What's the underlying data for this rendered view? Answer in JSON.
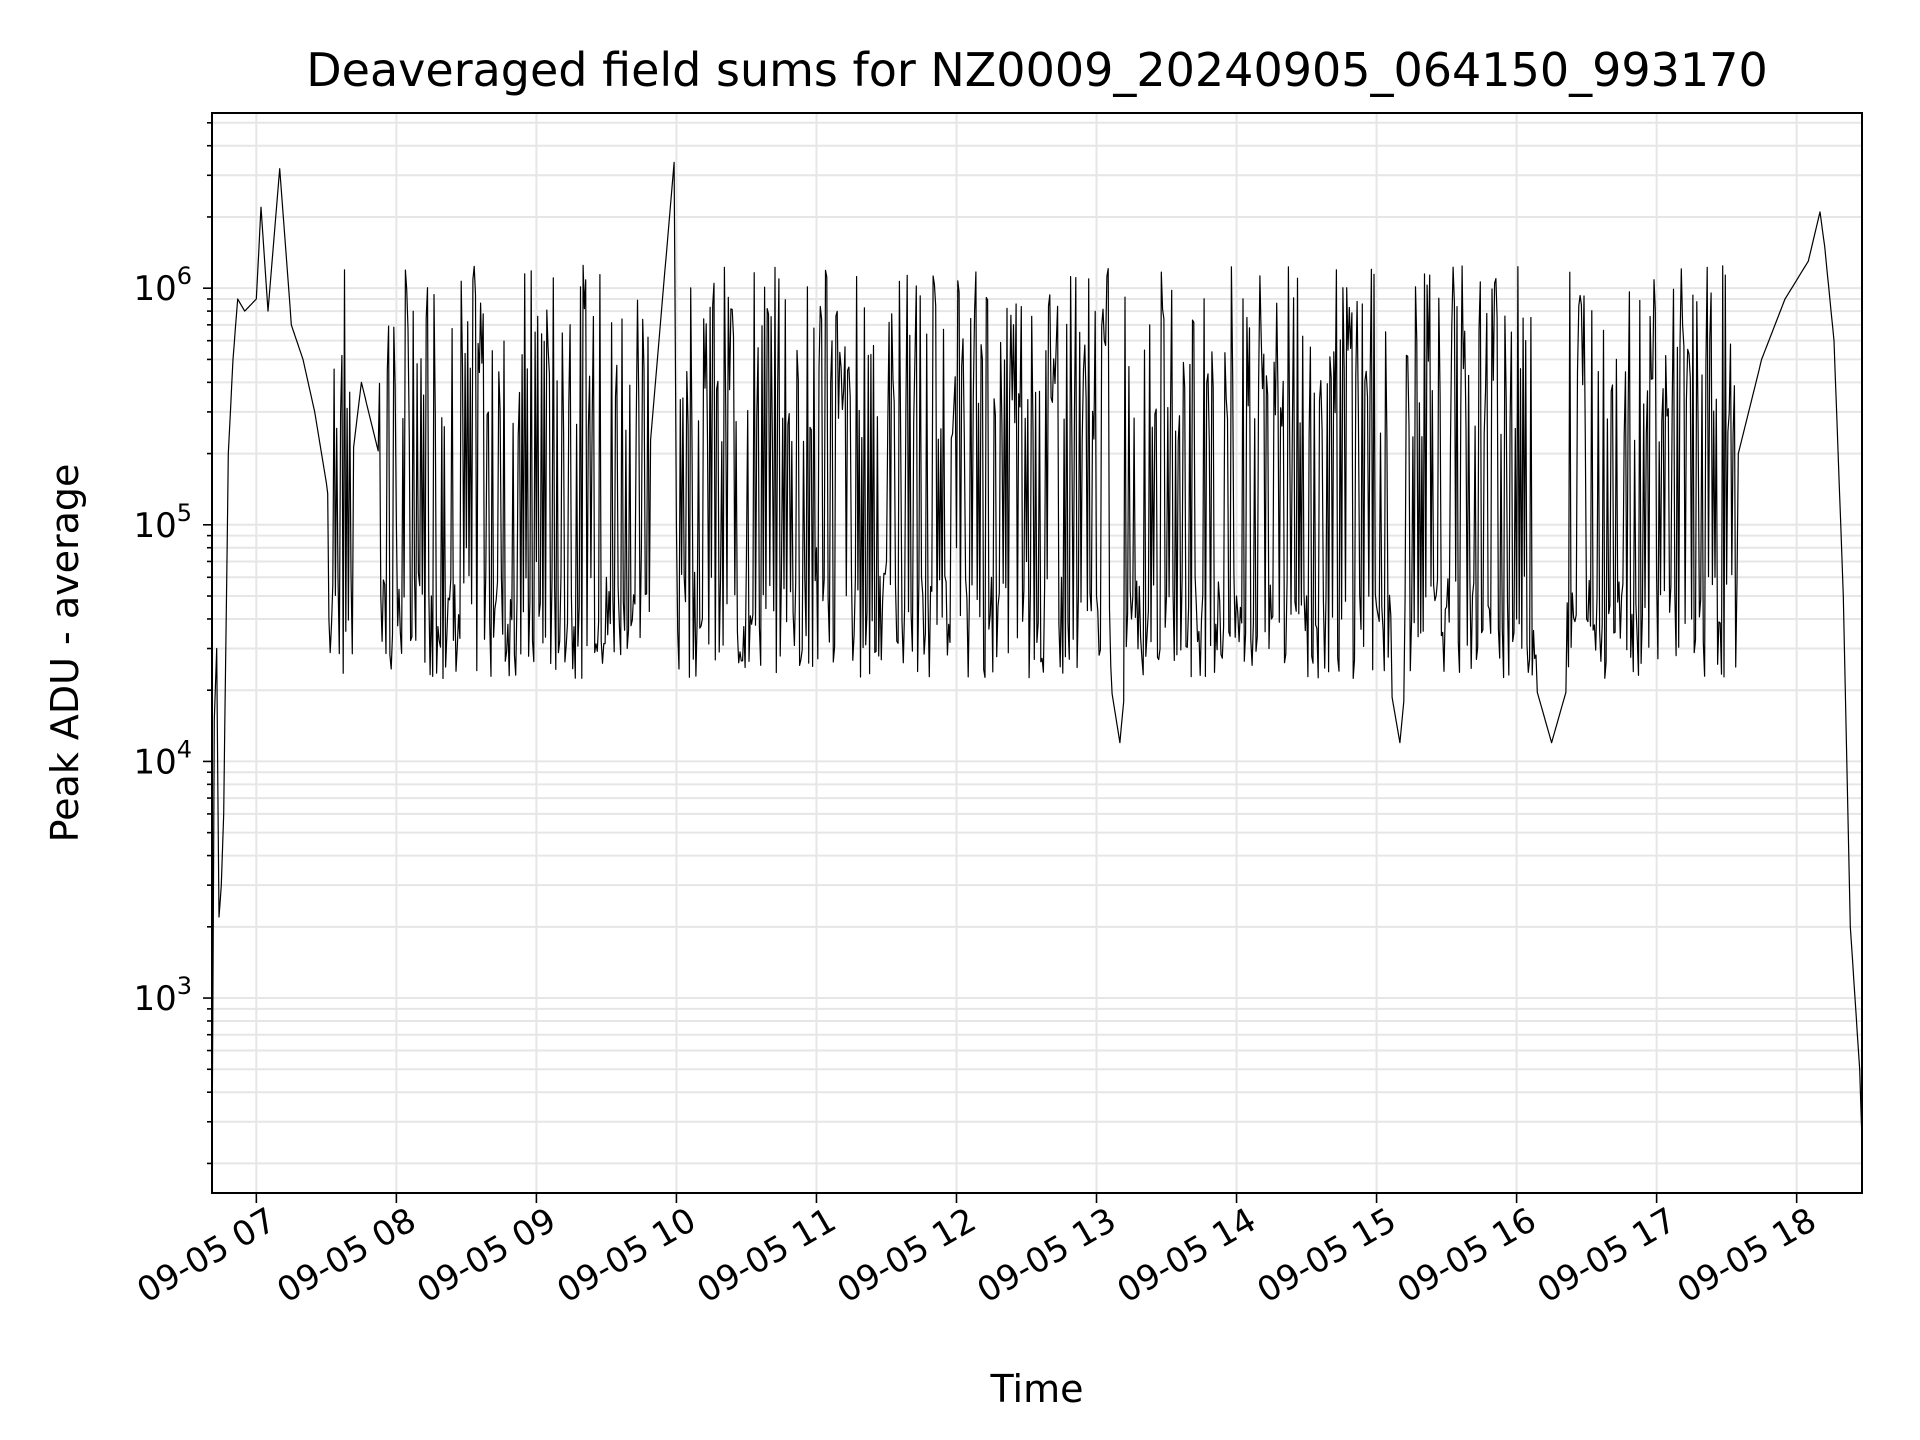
{
  "chart_data": {
    "type": "line",
    "title": "Deaveraged field sums for NZ0009_20240905_064150_993170",
    "xlabel": "Time",
    "ylabel": "Peak ADU - average",
    "y_scale": "log",
    "grid": true,
    "line_color": "#000000",
    "grid_color": "#e6e6e6",
    "xlim": [
      "09-05 06:41",
      "09-05 18:28"
    ],
    "ylim": [
      150,
      5500000
    ],
    "x_ticks": [
      "09-05 07",
      "09-05 08",
      "09-05 09",
      "09-05 10",
      "09-05 11",
      "09-05 12",
      "09-05 13",
      "09-05 14",
      "09-05 15",
      "09-05 16",
      "09-05 17",
      "09-05 18"
    ],
    "y_ticks": [
      {
        "base": "10",
        "exp": "3",
        "value": 1000
      },
      {
        "base": "10",
        "exp": "4",
        "value": 10000
      },
      {
        "base": "10",
        "exp": "5",
        "value": 100000
      },
      {
        "base": "10",
        "exp": "6",
        "value": 1000000
      }
    ],
    "series": [
      {
        "points": [
          [
            "09-05 06:41",
            200
          ],
          [
            "09-05 06:42",
            15000
          ],
          [
            "09-05 06:43",
            30000
          ],
          [
            "09-05 06:44",
            2200
          ],
          [
            "09-05 06:45",
            3000
          ],
          [
            "09-05 06:46",
            6000
          ],
          [
            "09-05 06:48",
            200000
          ],
          [
            "09-05 06:50",
            500000
          ],
          [
            "09-05 06:52",
            900000
          ],
          [
            "09-05 06:55",
            800000
          ],
          [
            "09-05 07:00",
            900000
          ],
          [
            "09-05 07:02",
            2200000
          ],
          [
            "09-05 07:05",
            800000
          ],
          [
            "09-05 07:10",
            3200000
          ],
          [
            "09-05 07:15",
            700000
          ],
          [
            "09-05 07:20",
            500000
          ],
          [
            "09-05 07:25",
            300000
          ],
          [
            "09-05 07:30",
            150000
          ],
          [
            "09-05 07:35",
            60000
          ],
          [
            "09-05 07:45",
            400000
          ],
          [
            "09-05 08:00",
            100000
          ],
          [
            "09-05 08:15",
            50000
          ],
          [
            "09-05 08:30",
            80000
          ],
          [
            "09-05 08:45",
            60000
          ],
          [
            "09-05 09:00",
            70000
          ],
          [
            "09-05 09:15",
            50000
          ],
          [
            "09-05 09:30",
            60000
          ],
          [
            "09-05 09:45",
            80000
          ],
          [
            "09-05 09:59",
            3400000
          ],
          [
            "09-05 10:00",
            100000
          ],
          [
            "09-05 10:15",
            60000
          ],
          [
            "09-05 10:30",
            70000
          ],
          [
            "09-05 10:45",
            60000
          ],
          [
            "09-05 11:00",
            80000
          ],
          [
            "09-05 11:15",
            60000
          ],
          [
            "09-05 11:30",
            70000
          ],
          [
            "09-05 11:45",
            60000
          ],
          [
            "09-05 12:00",
            80000
          ],
          [
            "09-05 12:15",
            60000
          ],
          [
            "09-05 12:30",
            70000
          ],
          [
            "09-05 12:45",
            60000
          ],
          [
            "09-05 13:00",
            50000
          ],
          [
            "09-05 13:10",
            12000
          ],
          [
            "09-05 13:15",
            40000
          ],
          [
            "09-05 13:30",
            50000
          ],
          [
            "09-05 13:45",
            40000
          ],
          [
            "09-05 14:00",
            50000
          ],
          [
            "09-05 14:15",
            40000
          ],
          [
            "09-05 14:30",
            50000
          ],
          [
            "09-05 14:45",
            40000
          ],
          [
            "09-05 15:00",
            45000
          ],
          [
            "09-05 15:10",
            12000
          ],
          [
            "09-05 15:15",
            40000
          ],
          [
            "09-05 15:30",
            45000
          ],
          [
            "09-05 15:45",
            35000
          ],
          [
            "09-05 16:00",
            40000
          ],
          [
            "09-05 16:15",
            12000
          ],
          [
            "09-05 16:30",
            40000
          ],
          [
            "09-05 16:45",
            50000
          ],
          [
            "09-05 17:00",
            60000
          ],
          [
            "09-05 17:15",
            40000
          ],
          [
            "09-05 17:25",
            60000
          ],
          [
            "09-05 17:35",
            200000
          ],
          [
            "09-05 17:45",
            500000
          ],
          [
            "09-05 17:55",
            900000
          ],
          [
            "09-05 18:05",
            1300000
          ],
          [
            "09-05 18:10",
            2100000
          ],
          [
            "09-05 18:12",
            1500000
          ],
          [
            "09-05 18:16",
            600000
          ],
          [
            "09-05 18:20",
            50000
          ],
          [
            "09-05 18:23",
            2000
          ],
          [
            "09-05 18:25",
            1000
          ],
          [
            "09-05 18:27",
            500
          ],
          [
            "09-05 18:28",
            250
          ]
        ]
      }
    ]
  }
}
